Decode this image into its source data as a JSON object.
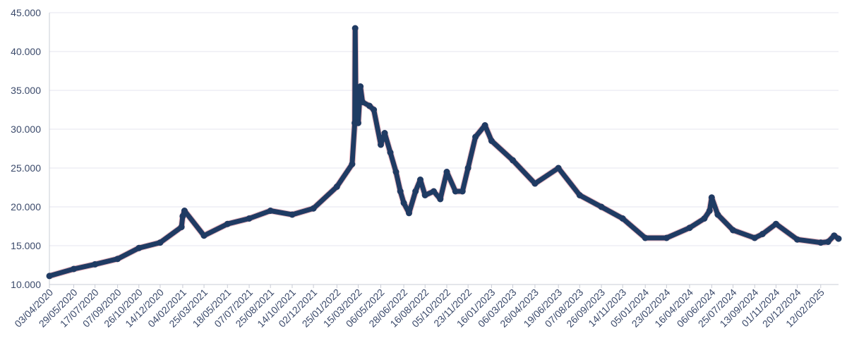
{
  "chart_data": {
    "type": "line",
    "title": "",
    "xlabel": "",
    "ylabel": "",
    "ylim": [
      10000,
      45000
    ],
    "y_ticks": [
      10000,
      15000,
      20000,
      25000,
      30000,
      35000,
      40000,
      45000
    ],
    "y_tick_labels": [
      "10.000",
      "15.000",
      "20.000",
      "25.000",
      "30.000",
      "35.000",
      "40.000",
      "45.000"
    ],
    "x_tick_labels": [
      "03/04/2020",
      "29/05/2020",
      "17/07/2020",
      "07/09/2020",
      "26/10/2020",
      "14/12/2020",
      "04/02/2021",
      "25/03/2021",
      "18/05/2021",
      "07/07/2021",
      "25/08/2021",
      "14/10/2021",
      "02/12/2021",
      "25/01/2022",
      "15/03/2022",
      "06/05/2022",
      "28/06/2022",
      "16/08/2022",
      "05/10/2022",
      "23/11/2022",
      "16/01/2023",
      "06/03/2023",
      "26/04/2023",
      "19/06/2023",
      "07/08/2023",
      "26/09/2023",
      "14/11/2023",
      "05/01/2024",
      "23/02/2024",
      "16/04/2024",
      "06/06/2024",
      "25/07/2024",
      "13/09/2024",
      "01/11/2024",
      "20/12/2024",
      "12/02/2025"
    ],
    "grid": true,
    "legend": "none",
    "colors": {
      "line": "#1f3b63",
      "marker": "#1f3b63",
      "noise": "#c0344d",
      "grid": "#e6e6ef",
      "tick_text": "#3b4a6b"
    },
    "series": [
      {
        "x": [
          "03/04/2020",
          "29/05/2020",
          "17/07/2020",
          "07/09/2020",
          "26/10/2020",
          "14/12/2020",
          "01/02/2021",
          "04/02/2021",
          "08/02/2021",
          "25/03/2021",
          "18/05/2021",
          "07/07/2021",
          "25/08/2021",
          "14/10/2021",
          "02/12/2021",
          "25/01/2022",
          "01/03/2022",
          "07/03/2022",
          "08/03/2022",
          "10/03/2022",
          "15/03/2022",
          "20/03/2022",
          "25/03/2022",
          "10/04/2022",
          "20/04/2022",
          "06/05/2022",
          "15/05/2022",
          "28/05/2022",
          "10/06/2022",
          "20/06/2022",
          "28/06/2022",
          "10/07/2022",
          "25/07/2022",
          "05/08/2022",
          "16/08/2022",
          "05/09/2022",
          "20/09/2022",
          "05/10/2022",
          "25/10/2022",
          "10/11/2022",
          "23/11/2022",
          "10/12/2022",
          "01/01/2023",
          "16/01/2023",
          "06/03/2023",
          "26/04/2023",
          "19/06/2023",
          "07/08/2023",
          "26/09/2023",
          "14/11/2023",
          "05/01/2024",
          "23/02/2024",
          "16/04/2024",
          "20/05/2024",
          "01/06/2024",
          "06/06/2024",
          "20/06/2024",
          "25/07/2024",
          "13/09/2024",
          "01/10/2024",
          "01/11/2024",
          "20/12/2024",
          "12/02/2025",
          "01/03/2025",
          "15/03/2025",
          "25/03/2025"
        ],
        "y": [
          11100,
          12000,
          12600,
          13300,
          14700,
          15400,
          17400,
          18800,
          19500,
          16300,
          17800,
          18500,
          19500,
          19000,
          19800,
          22600,
          25500,
          30800,
          43000,
          30800,
          30800,
          35500,
          33500,
          33000,
          32500,
          28000,
          29500,
          27000,
          24500,
          22000,
          20500,
          19200,
          22000,
          23500,
          21500,
          22000,
          21000,
          24500,
          22000,
          22000,
          25000,
          29000,
          30500,
          28500,
          26000,
          23000,
          25000,
          21500,
          20000,
          18500,
          16000,
          16000,
          17300,
          18500,
          19500,
          21200,
          19000,
          17000,
          16000,
          16500,
          17800,
          15800,
          15400,
          15500,
          16300,
          15900
        ]
      }
    ]
  }
}
